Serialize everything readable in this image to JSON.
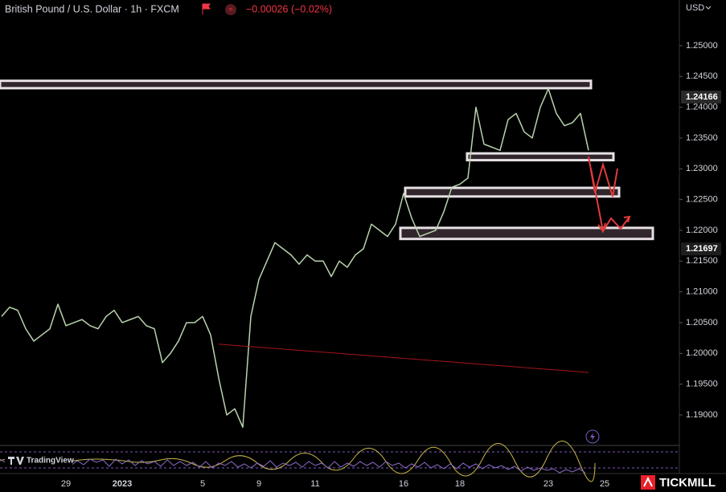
{
  "chart_data": {
    "type": "line",
    "title": "British Pound / U.S. Dollar · 1h · FXCM",
    "change": "−0.00026 (−0.02%)",
    "currency": "USD",
    "brand": "TradingView",
    "broker": "TICKMILL",
    "categories": [
      null,
      null,
      null,
      null,
      null,
      null,
      null,
      null,
      "29",
      null,
      null,
      null,
      null,
      null,
      null,
      "2023",
      null,
      null,
      null,
      null,
      null,
      null,
      null,
      null,
      null,
      "5",
      null,
      null,
      null,
      null,
      null,
      null,
      "9",
      null,
      null,
      null,
      null,
      null,
      null,
      "11",
      null,
      null,
      null,
      null,
      null,
      null,
      null,
      null,
      null,
      null,
      "16",
      null,
      null,
      null,
      null,
      null,
      null,
      "18",
      null,
      null,
      null,
      null,
      null,
      null,
      null,
      null,
      null,
      null,
      "23",
      null,
      null,
      null,
      null,
      null,
      null,
      "25"
    ],
    "series": [
      {
        "name": "GBPUSD",
        "color": "#b9d3ad",
        "values": [
          1.206,
          1.2075,
          1.207,
          1.204,
          1.202,
          1.203,
          1.204,
          1.208,
          1.2045,
          1.205,
          1.2055,
          1.2045,
          1.204,
          1.206,
          1.207,
          1.205,
          1.2055,
          1.206,
          1.2045,
          1.204,
          1.1985,
          1.2,
          1.202,
          1.205,
          1.205,
          1.206,
          1.203,
          1.196,
          1.19,
          1.191,
          1.188,
          1.206,
          1.212,
          1.215,
          1.218,
          1.217,
          1.216,
          1.2145,
          1.216,
          1.215,
          1.215,
          1.2125,
          1.215,
          1.214,
          1.216,
          1.217,
          1.221,
          1.22,
          1.219,
          1.221,
          1.226,
          1.222,
          1.219,
          1.2195,
          1.22,
          1.223,
          1.227,
          1.2275,
          1.2285,
          1.24,
          1.234,
          1.2335,
          1.233,
          1.238,
          1.239,
          1.236,
          1.235,
          1.24,
          1.243,
          1.239,
          1.237,
          1.2375,
          1.239,
          1.233,
          null,
          null
        ]
      },
      {
        "name": "MA",
        "color": "#a3161a",
        "values": [
          null,
          null,
          null,
          null,
          null,
          null,
          null,
          null,
          null,
          null,
          null,
          null,
          null,
          null,
          null,
          null,
          null,
          null,
          null,
          null,
          null,
          null,
          null,
          null,
          null,
          null,
          null,
          1.2015,
          1.2014,
          1.2013,
          1.2012,
          1.2011,
          1.201,
          1.2009,
          1.2008,
          1.2007,
          1.2006,
          1.2005,
          1.2004,
          1.2003,
          1.2002,
          1.2001,
          1.2,
          1.1999,
          1.1998,
          1.1997,
          1.1996,
          1.1995,
          1.1994,
          1.1993,
          1.1992,
          1.1991,
          1.199,
          1.1989,
          1.1988,
          1.1987,
          1.1986,
          1.1985,
          1.1984,
          1.1983,
          1.1982,
          1.1981,
          1.198,
          1.1979,
          1.1978,
          1.1977,
          1.1976,
          1.1975,
          1.1974,
          1.1973,
          1.1972,
          1.1971,
          1.197,
          1.1969,
          null,
          null
        ]
      }
    ],
    "zones": [
      {
        "low": 1.2431,
        "high": 1.2443
      },
      {
        "low": 1.2314,
        "high": 1.2325
      },
      {
        "low": 1.2255,
        "high": 1.2269
      },
      {
        "low": 1.2186,
        "high": 1.2204
      }
    ],
    "price_labels": [
      1.24166,
      1.21697
    ],
    "ylim": [
      1.18504,
      1.25743
    ],
    "yticks": [
      {
        "value": 1.19,
        "label": "1.19000"
      },
      {
        "value": 1.195,
        "label": "1.19500"
      },
      {
        "value": 1.2,
        "label": "1.20000"
      },
      {
        "value": 1.205,
        "label": "1.20500"
      },
      {
        "value": 1.21,
        "label": "1.21000"
      },
      {
        "value": 1.215,
        "label": "1.21500"
      },
      {
        "value": 1.22,
        "label": "1.22000"
      },
      {
        "value": 1.225,
        "label": "1.22500"
      },
      {
        "value": 1.23,
        "label": "1.23000"
      },
      {
        "value": 1.235,
        "label": "1.23500"
      },
      {
        "value": 1.24,
        "label": "1.24000"
      },
      {
        "value": 1.245,
        "label": "1.24500"
      },
      {
        "value": 1.25,
        "label": "1.25000"
      }
    ],
    "grid": false
  }
}
